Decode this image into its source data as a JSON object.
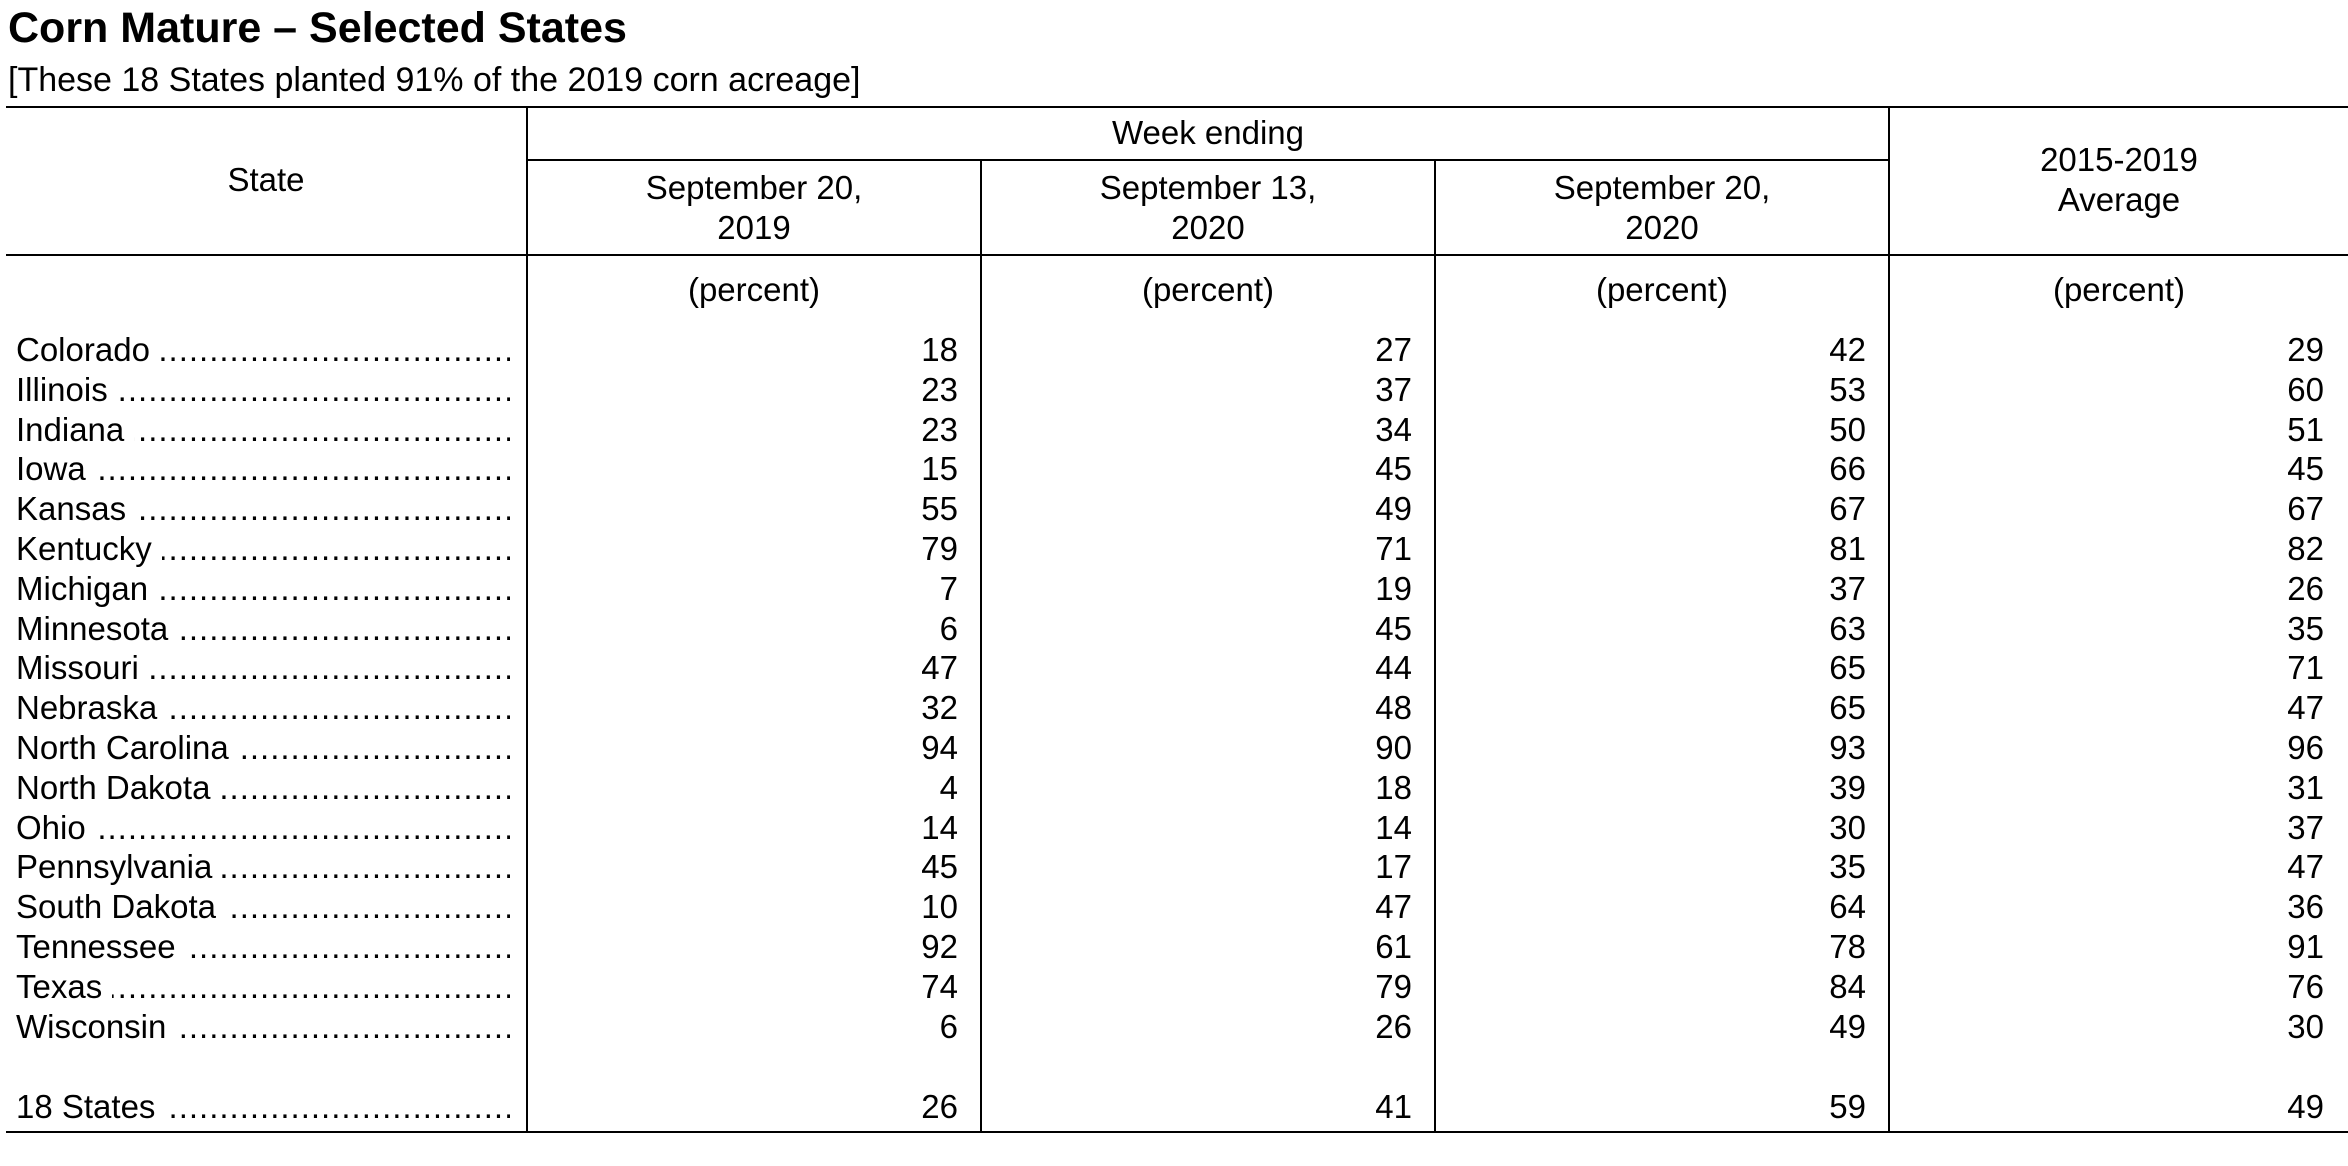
{
  "title": "Corn Mature – Selected States",
  "subtitle": "[These 18 States planted 91% of the 2019 corn acreage]",
  "header": {
    "state": "State",
    "week_ending": "Week ending",
    "col1": "September 20,\n2019",
    "col2": "September 13,\n2020",
    "col3": "September 20,\n2020",
    "col4": "2015-2019\nAverage",
    "unit": "(percent)"
  },
  "dots": "....................................................................................................",
  "rows": [
    {
      "state": "Colorado",
      "v": [
        "18",
        "27",
        "42",
        "29"
      ]
    },
    {
      "state": "Illinois",
      "v": [
        "23",
        "37",
        "53",
        "60"
      ]
    },
    {
      "state": "Indiana",
      "v": [
        "23",
        "34",
        "50",
        "51"
      ]
    },
    {
      "state": "Iowa",
      "v": [
        "15",
        "45",
        "66",
        "45"
      ]
    },
    {
      "state": "Kansas",
      "v": [
        "55",
        "49",
        "67",
        "67"
      ]
    },
    {
      "state": "Kentucky",
      "v": [
        "79",
        "71",
        "81",
        "82"
      ]
    },
    {
      "state": "Michigan",
      "v": [
        "7",
        "19",
        "37",
        "26"
      ]
    },
    {
      "state": "Minnesota",
      "v": [
        "6",
        "45",
        "63",
        "35"
      ]
    },
    {
      "state": "Missouri",
      "v": [
        "47",
        "44",
        "65",
        "71"
      ]
    },
    {
      "state": "Nebraska",
      "v": [
        "32",
        "48",
        "65",
        "47"
      ]
    },
    {
      "state": "North Carolina",
      "v": [
        "94",
        "90",
        "93",
        "96"
      ]
    },
    {
      "state": "North Dakota",
      "v": [
        "4",
        "18",
        "39",
        "31"
      ]
    },
    {
      "state": "Ohio",
      "v": [
        "14",
        "14",
        "30",
        "37"
      ]
    },
    {
      "state": "Pennsylvania",
      "v": [
        "45",
        "17",
        "35",
        "47"
      ]
    },
    {
      "state": "South Dakota",
      "v": [
        "10",
        "47",
        "64",
        "36"
      ]
    },
    {
      "state": "Tennessee",
      "v": [
        "92",
        "61",
        "78",
        "91"
      ]
    },
    {
      "state": "Texas",
      "v": [
        "74",
        "79",
        "84",
        "76"
      ]
    },
    {
      "state": "Wisconsin",
      "v": [
        "6",
        "26",
        "49",
        "30"
      ]
    }
  ],
  "total": {
    "state": "18 States",
    "v": [
      "26",
      "41",
      "59",
      "49"
    ]
  }
}
